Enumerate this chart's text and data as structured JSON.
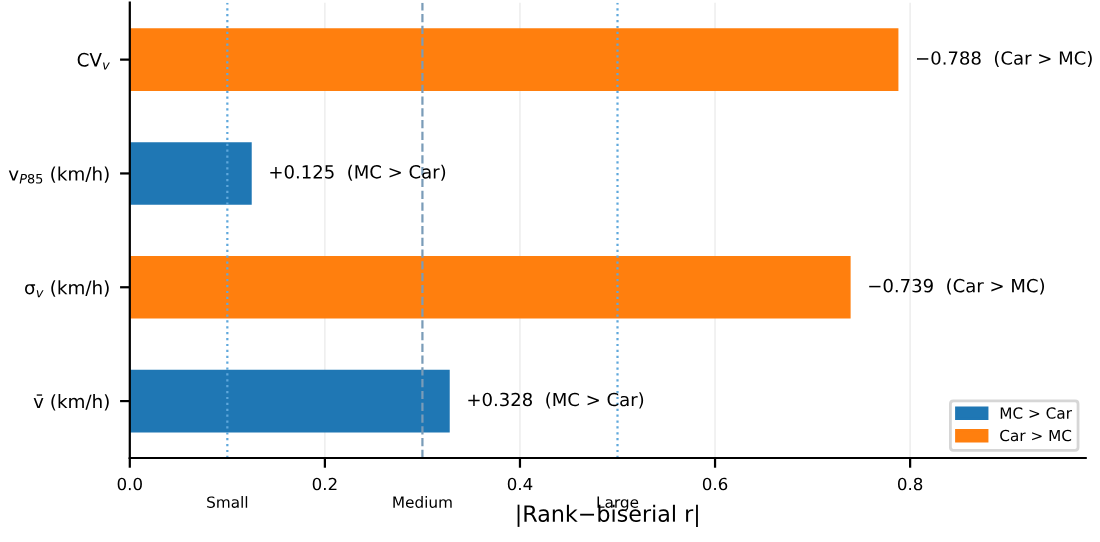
{
  "chart_data": {
    "type": "bar",
    "orientation": "horizontal",
    "categories": [
      "CV$_{v}$",
      "v$_{P85}$ (km/h)",
      "σ$_{v}$ (km/h)",
      "v̄ (km/h)"
    ],
    "series": [
      {
        "name": "MC > Car",
        "color": "#1f77b4",
        "values": [
          null,
          0.125,
          null,
          0.328
        ],
        "value_labels": [
          null,
          "+0.125  (MC > Car)",
          null,
          "+0.328  (MC > Car)"
        ]
      },
      {
        "name": "Car > MC",
        "color": "#ff7f0e",
        "values": [
          0.788,
          null,
          0.739,
          null
        ],
        "value_labels": [
          "−0.788  (Car > MC)",
          null,
          "−0.739  (Car > MC)",
          null
        ]
      }
    ],
    "xlabel": "|Rank−biserial r|",
    "xlim": [
      0,
      0.98
    ],
    "xticks": [
      {
        "value": 0,
        "label": "0.0"
      },
      {
        "value": 0.2,
        "label": "0.2"
      },
      {
        "value": 0.4,
        "label": "0.4"
      },
      {
        "value": 0.6,
        "label": "0.6"
      },
      {
        "value": 0.8,
        "label": "0.8"
      }
    ],
    "ref_lines": [
      {
        "axis": "x",
        "value": 0.1,
        "label": "Small",
        "color": "#5fa8dc",
        "line_style": "dotted"
      },
      {
        "axis": "x",
        "value": 0.3,
        "label": "Medium",
        "color": "#7a9cb8",
        "line_style": "dashed"
      },
      {
        "axis": "x",
        "value": 0.5,
        "label": "Large",
        "color": "#5fa8dc",
        "line_style": "dotted"
      }
    ],
    "grid": "x",
    "legend": "bottom right"
  }
}
